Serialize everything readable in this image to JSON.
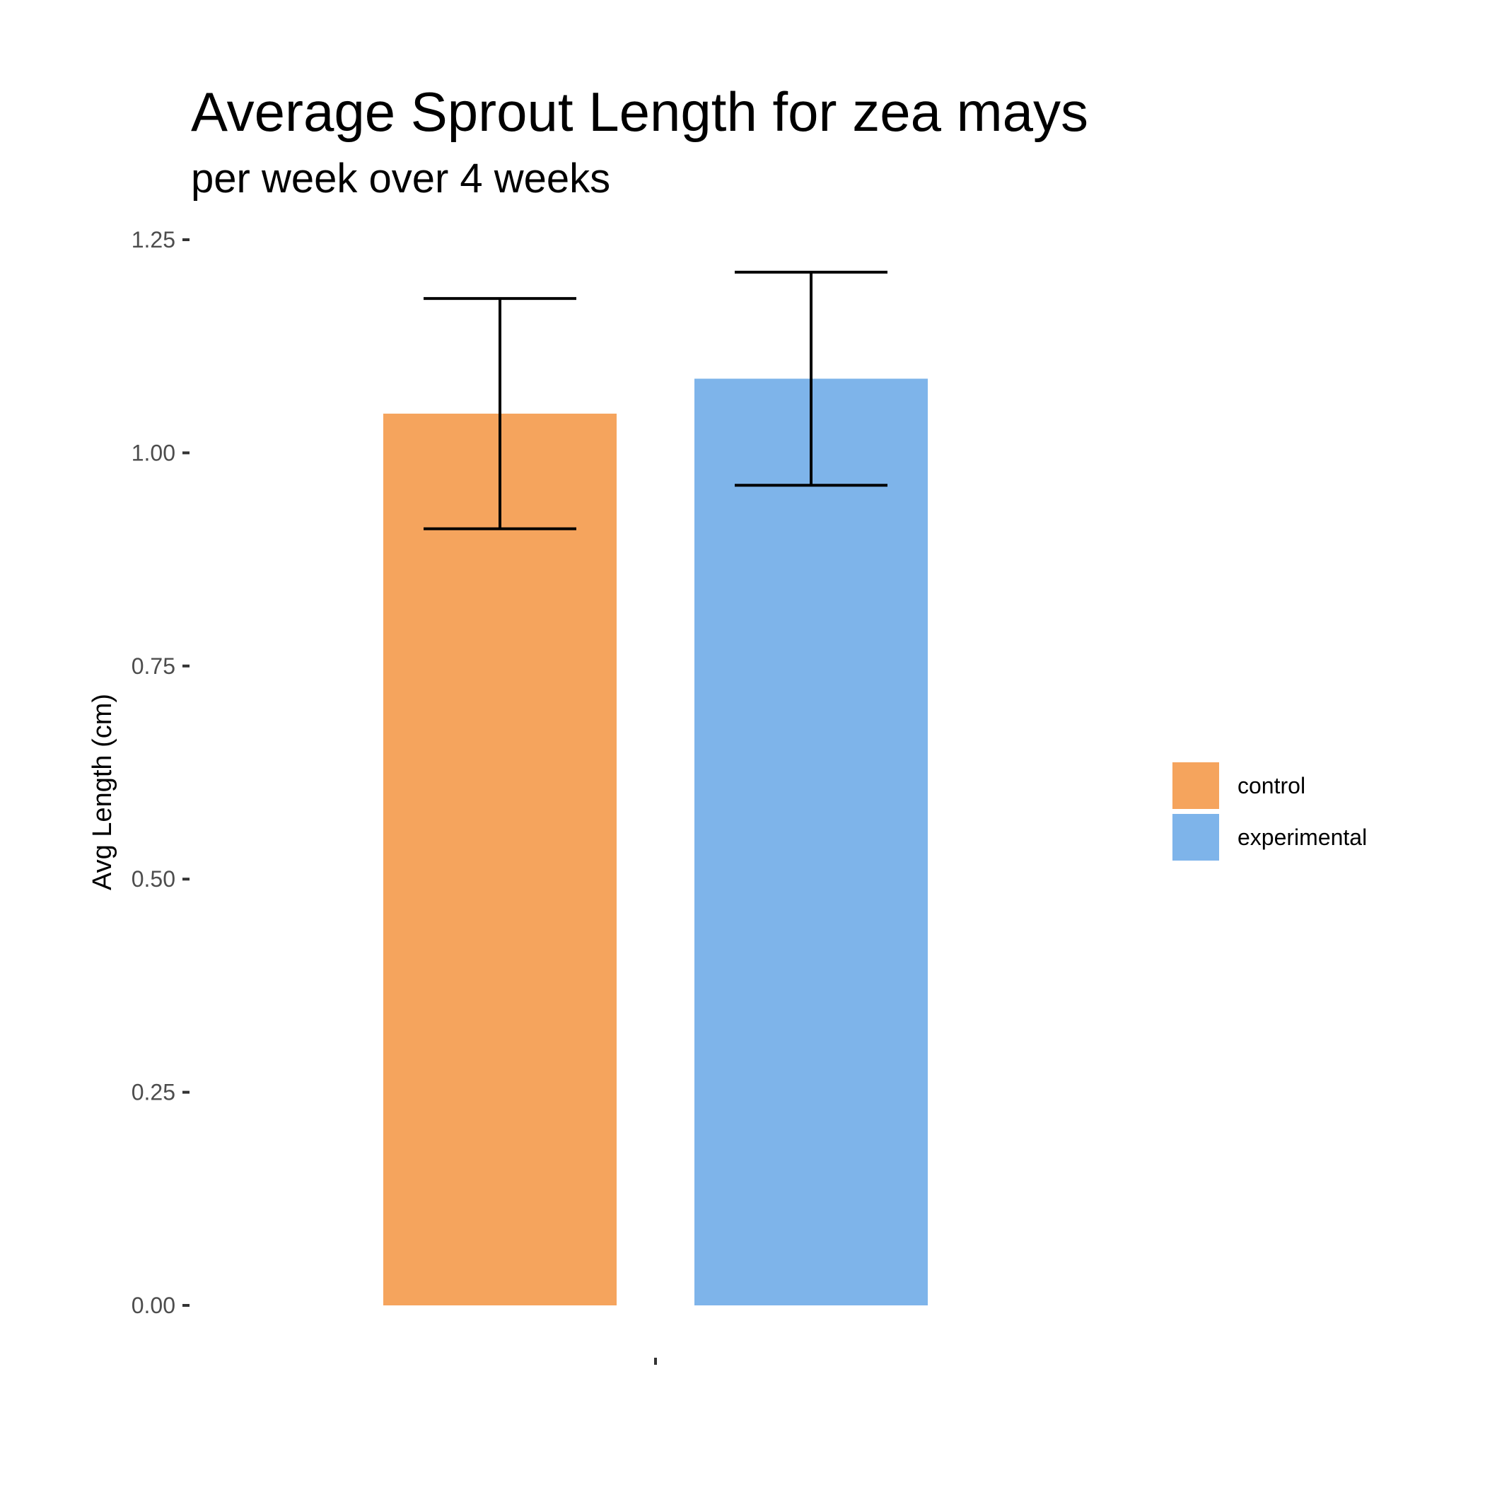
{
  "chart_data": {
    "type": "bar",
    "title": "Average Sprout Length for zea mays",
    "subtitle": "per week over 4 weeks",
    "xlabel": "",
    "ylabel": "Avg Length (cm)",
    "ylim": [
      0,
      1.25
    ],
    "yticks": [
      "0.00",
      "0.25",
      "0.50",
      "0.75",
      "1.00",
      "1.25"
    ],
    "categories": [
      ""
    ],
    "series": [
      {
        "name": "control",
        "color": "#F5A45D",
        "values": [
          1.046
        ],
        "error_low": [
          0.911
        ],
        "error_high": [
          1.181
        ]
      },
      {
        "name": "experimental",
        "color": "#7EB4EA",
        "values": [
          1.087
        ],
        "error_low": [
          0.962
        ],
        "error_high": [
          1.212
        ]
      }
    ],
    "grid": false,
    "legend": "right"
  }
}
